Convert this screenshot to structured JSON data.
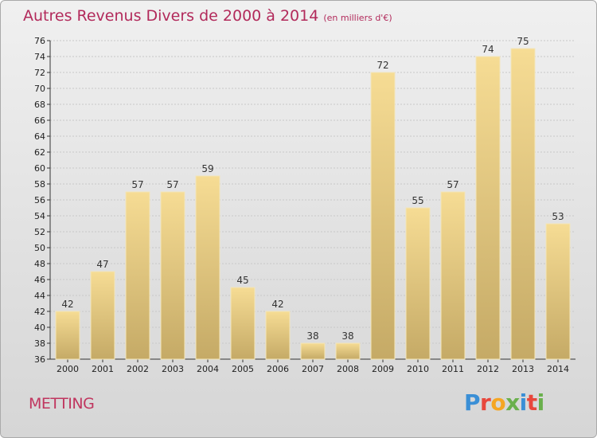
{
  "header": {
    "title": "Autres Revenus Divers de 2000 à 2014",
    "unit": "(en milliers d'€)"
  },
  "footer": {
    "location": "METTING",
    "logo_letters": [
      "P",
      "r",
      "o",
      "x",
      "i",
      "t",
      "i"
    ],
    "logo_colors": [
      "#3a8fd6",
      "#e8473c",
      "#f5a623",
      "#6ab04c",
      "#3a8fd6",
      "#e8473c",
      "#6ab04c"
    ]
  },
  "colors": {
    "bar_light": "#f6dc94",
    "bar_dark": "#c5aa66",
    "title": "#b22a5b",
    "location": "#c0365f"
  },
  "chart_data": {
    "type": "bar",
    "title": "Autres Revenus Divers de 2000 à 2014",
    "subtitle": "(en milliers d'€)",
    "xlabel": "",
    "ylabel": "",
    "categories": [
      "2000",
      "2001",
      "2002",
      "2003",
      "2004",
      "2005",
      "2006",
      "2007",
      "2008",
      "2009",
      "2010",
      "2011",
      "2012",
      "2013",
      "2014"
    ],
    "values": [
      42,
      47,
      57,
      57,
      59,
      45,
      42,
      38,
      38,
      72,
      55,
      57,
      74,
      75,
      53
    ],
    "ylim": [
      36,
      76
    ],
    "yticks": [
      36,
      38,
      40,
      42,
      44,
      46,
      48,
      50,
      52,
      54,
      56,
      58,
      60,
      62,
      64,
      66,
      68,
      70,
      72,
      74,
      76
    ],
    "grid": true,
    "legend": "none"
  }
}
